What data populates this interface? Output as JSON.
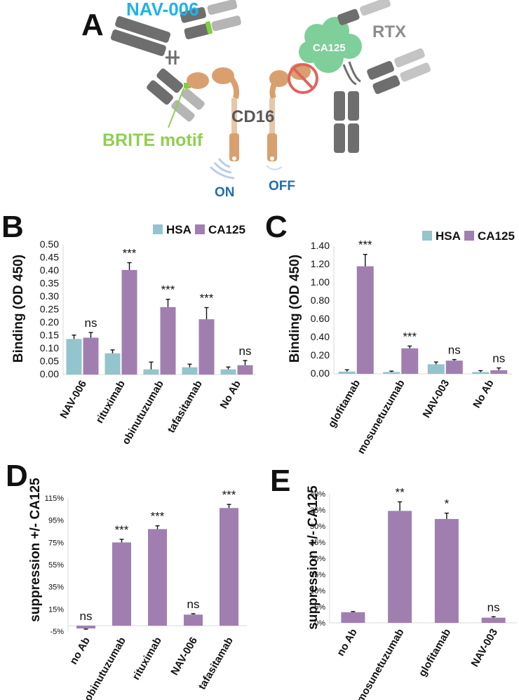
{
  "panel_letters": {
    "a": "A",
    "b": "B",
    "c": "C",
    "d": "D",
    "e": "E"
  },
  "diagram": {
    "nav006_label": "NAV-006",
    "rtx_label": "RTX",
    "ca125_label": "CA125",
    "cd16_label": "CD16",
    "brite_label": "BRITE motif",
    "on_label": "ON",
    "off_label": "OFF",
    "colors": {
      "nav006": "#1fb3e6",
      "brite": "#8fcf4f",
      "cd16": "#d9a06f",
      "ca125": "#7fcf9a",
      "signal": "#1f6fb0",
      "antibody": "#6e6e6e"
    }
  },
  "chart_data": [
    {
      "id": "B",
      "type": "bar",
      "title": "",
      "ylabel": "Binding (OD 450)",
      "xlabel": "",
      "ylim": [
        0,
        0.5
      ],
      "yticks": [
        "0.00",
        "0.05",
        "0.10",
        "0.15",
        "0.20",
        "0.25",
        "0.30",
        "0.35",
        "0.40",
        "0.45",
        "0.50"
      ],
      "categories": [
        "NAV-006",
        "rituximab",
        "obinutuzumab",
        "tafasitamab",
        "No Ab"
      ],
      "series": [
        {
          "name": "HSA",
          "color": "#94c4cc",
          "values": [
            0.137,
            0.082,
            0.02,
            0.028,
            0.02
          ],
          "errors": [
            0.015,
            0.013,
            0.028,
            0.012,
            0.009
          ]
        },
        {
          "name": "CA125",
          "color": "#a07fb0",
          "values": [
            0.142,
            0.403,
            0.26,
            0.213,
            0.036
          ],
          "errors": [
            0.02,
            0.028,
            0.03,
            0.045,
            0.018
          ]
        }
      ],
      "significance": [
        "ns",
        "***",
        "***",
        "***",
        "ns"
      ],
      "legend": "top-right"
    },
    {
      "id": "C",
      "type": "bar",
      "title": "",
      "ylabel": "Binding (OD 450)",
      "xlabel": "",
      "ylim": [
        0,
        1.4
      ],
      "yticks": [
        "0.00",
        "0.20",
        "0.40",
        "0.60",
        "0.80",
        "1.00",
        "1.20",
        "1.40"
      ],
      "categories": [
        "glofitamab",
        "mosunetuzumab",
        "NAV-003",
        "No Ab"
      ],
      "series": [
        {
          "name": "HSA",
          "color": "#94c4cc",
          "values": [
            0.025,
            0.02,
            0.105,
            0.02
          ],
          "errors": [
            0.02,
            0.01,
            0.025,
            0.015
          ]
        },
        {
          "name": "CA125",
          "color": "#a07fb0",
          "values": [
            1.18,
            0.28,
            0.145,
            0.04
          ],
          "errors": [
            0.13,
            0.025,
            0.012,
            0.025
          ]
        }
      ],
      "significance": [
        "***",
        "***",
        "ns",
        "ns"
      ],
      "legend": "top-right"
    },
    {
      "id": "D",
      "type": "bar",
      "title": "",
      "ylabel": "suppression +/- CA125",
      "xlabel": "",
      "ylim": [
        -5,
        115
      ],
      "yticks": [
        "-5%",
        "15%",
        "35%",
        "55%",
        "75%",
        "95%",
        "115%"
      ],
      "categories": [
        "no Ab",
        "obinutuzumab",
        "rituximab",
        "NAV-006",
        "tafasitamab"
      ],
      "series": [
        {
          "name": "suppression",
          "color": "#a07fb0",
          "values": [
            -2.5,
            75,
            87,
            10,
            106
          ],
          "errors": [
            0.6,
            2.8,
            3.0,
            0.8,
            3.2
          ]
        }
      ],
      "significance": [
        "ns",
        "***",
        "***",
        "ns",
        "***"
      ],
      "legend": "none"
    },
    {
      "id": "E",
      "type": "bar",
      "title": "",
      "ylabel": "suppression +/- CA125",
      "xlabel": "",
      "ylim": [
        0,
        40
      ],
      "yticks": [
        "0%",
        "5%",
        "10%",
        "15%",
        "20%",
        "25%",
        "30%",
        "35%",
        "40%"
      ],
      "categories": [
        "no Ab",
        "mosunetuzumab",
        "glofitamab",
        "NAV-003"
      ],
      "series": [
        {
          "name": "suppression",
          "color": "#a07fb0",
          "values": [
            3.3,
            34.7,
            32.2,
            1.6
          ],
          "errors": [
            0.2,
            2.8,
            1.8,
            0.3
          ]
        }
      ],
      "significance": [
        "",
        "**",
        "*",
        "ns"
      ],
      "legend": "none"
    }
  ]
}
